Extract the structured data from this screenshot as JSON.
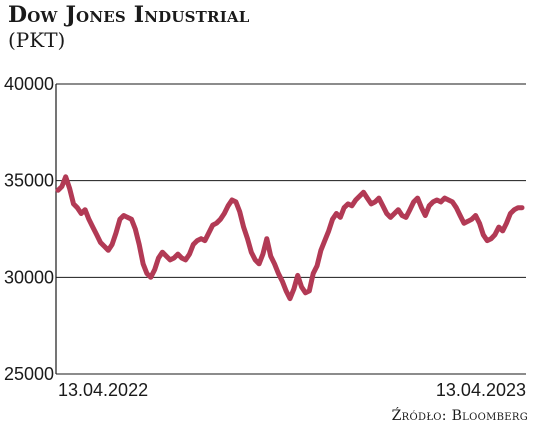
{
  "chart_data": {
    "type": "line",
    "title": "Dow Jones Industrial",
    "subtitle": "(PKT)",
    "source": "Źródło: Bloomberg",
    "x_start_label": "13.04.2022",
    "x_end_label": "13.04.2023",
    "ylim": [
      25000,
      40000
    ],
    "yticks": [
      40000,
      35000,
      30000,
      25000
    ],
    "grid": true,
    "line_color": "#b23a55",
    "series": [
      {
        "values": [
          34500,
          34700,
          35200,
          34600,
          33800,
          33600,
          33300,
          33500,
          33000,
          32600,
          32200,
          31800,
          31600,
          31400,
          31700,
          32300,
          33000,
          33200,
          33100,
          33000,
          32500,
          31700,
          30700,
          30200,
          30000,
          30400,
          31000,
          31300,
          31100,
          30900,
          31000,
          31200,
          31000,
          30900,
          31200,
          31700,
          31900,
          32000,
          31900,
          32300,
          32700,
          32800,
          33000,
          33300,
          33700,
          34000,
          33900,
          33400,
          32600,
          32000,
          31300,
          30900,
          30700,
          31200,
          32000,
          31100,
          30700,
          30200,
          29800,
          29300,
          28900,
          29400,
          30100,
          29500,
          29200,
          29300,
          30200,
          30600,
          31400,
          31900,
          32400,
          33000,
          33300,
          33100,
          33600,
          33800,
          33700,
          34000,
          34200,
          34400,
          34100,
          33800,
          33900,
          34100,
          33700,
          33300,
          33100,
          33300,
          33500,
          33200,
          33100,
          33500,
          33900,
          34100,
          33600,
          33200,
          33700,
          33900,
          34000,
          33900,
          34100,
          34000,
          33900,
          33600,
          33200,
          32800,
          32900,
          33000,
          33200,
          32800,
          32200,
          31900,
          32000,
          32200,
          32600,
          32400,
          32800,
          33300,
          33500,
          33600,
          33600
        ]
      }
    ]
  }
}
